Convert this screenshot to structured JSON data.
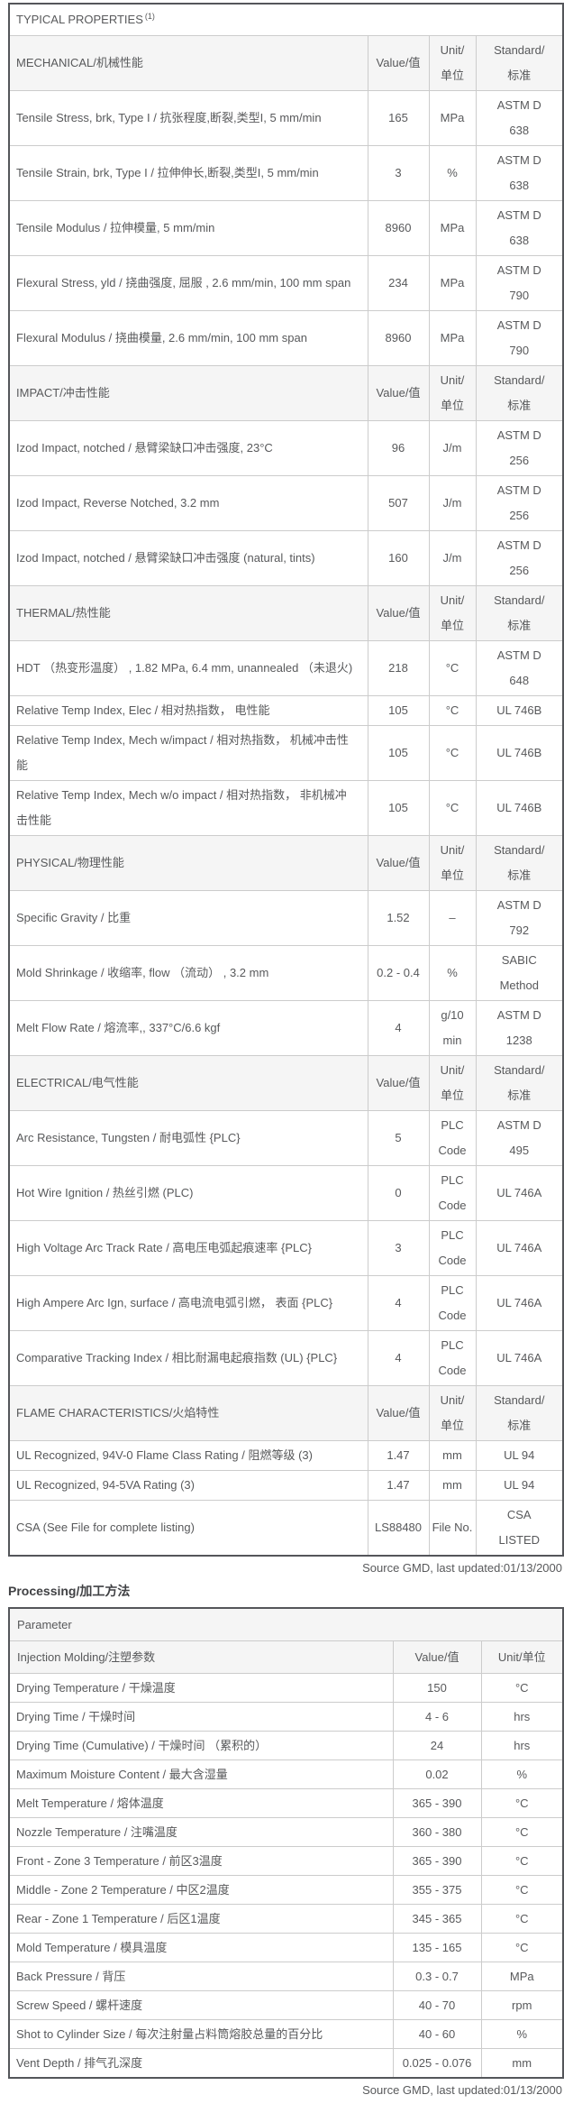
{
  "page": {
    "source_note": "Source GMD, last updated:01/13/2000",
    "processing_heading": "Processing/加工方法"
  },
  "typical_properties": {
    "title": "TYPICAL PROPERTIES",
    "title_superscript": "(1)",
    "columns": {
      "value": "Value/值",
      "unit": "Unit/\n单位",
      "standard": "Standard/\n标准"
    },
    "sections": [
      {
        "label": "MECHANICAL/机械性能",
        "rows": [
          {
            "property": "Tensile Stress, brk, Type I / 抗张程度,断裂,类型I, 5 mm/min",
            "value": "165",
            "unit": "MPa",
            "standard": "ASTM D\n638"
          },
          {
            "property": "Tensile Strain, brk, Type I / 拉伸伸长,断裂,类型I, 5 mm/min",
            "value": "3",
            "unit": "%",
            "standard": "ASTM D\n638"
          },
          {
            "property": "Tensile Modulus / 拉伸模量, 5 mm/min",
            "value": "8960",
            "unit": "MPa",
            "standard": "ASTM D\n638"
          },
          {
            "property": "Flexural Stress, yld / 挠曲强度, 屈服 , 2.6 mm/min, 100 mm span",
            "value": "234",
            "unit": "MPa",
            "standard": "ASTM D\n790"
          },
          {
            "property": "Flexural Modulus / 挠曲模量, 2.6 mm/min, 100 mm span",
            "value": "8960",
            "unit": "MPa",
            "standard": "ASTM D\n790"
          }
        ]
      },
      {
        "label": "IMPACT/冲击性能",
        "rows": [
          {
            "property": "Izod Impact, notched / 悬臂梁缺口冲击强度, 23°C",
            "value": "96",
            "unit": "J/m",
            "standard": "ASTM D\n256"
          },
          {
            "property": "Izod Impact, Reverse Notched, 3.2 mm",
            "value": "507",
            "unit": "J/m",
            "standard": "ASTM D\n256"
          },
          {
            "property": "Izod Impact, notched / 悬臂梁缺口冲击强度 (natural, tints)",
            "value": "160",
            "unit": "J/m",
            "standard": "ASTM D\n256"
          }
        ]
      },
      {
        "label": "THERMAL/热性能",
        "rows": [
          {
            "property": "HDT （热变形温度） , 1.82 MPa, 6.4 mm, unannealed （未退火)",
            "value": "218",
            "unit": "°C",
            "standard": "ASTM D\n648"
          },
          {
            "property": "Relative Temp Index, Elec / 相对热指数， 电性能",
            "value": "105",
            "unit": "°C",
            "standard": "UL 746B"
          },
          {
            "property": "Relative Temp Index, Mech w/impact / 相对热指数， 机械冲击性能",
            "value": "105",
            "unit": "°C",
            "standard": "UL 746B"
          },
          {
            "property": "Relative Temp Index, Mech w/o impact / 相对热指数， 非机械冲击性能",
            "value": "105",
            "unit": "°C",
            "standard": "UL 746B"
          }
        ]
      },
      {
        "label": "PHYSICAL/物理性能",
        "rows": [
          {
            "property": "Specific Gravity / 比重",
            "value": "1.52",
            "unit": "–",
            "standard": "ASTM D\n792"
          },
          {
            "property": "Mold Shrinkage / 收缩率, flow （流动） , 3.2 mm",
            "value": "0.2 - 0.4",
            "unit": "%",
            "standard": "SABIC\nMethod"
          },
          {
            "property": "Melt Flow Rate / 熔流率,, 337°C/6.6 kgf",
            "value": "4",
            "unit": "g/10\nmin",
            "standard": "ASTM D\n1238"
          }
        ]
      },
      {
        "label": "ELECTRICAL/电气性能",
        "rows": [
          {
            "property": "Arc Resistance, Tungsten / 耐电弧性 {PLC}",
            "value": "5",
            "unit": "PLC\nCode",
            "standard": "ASTM D\n495"
          },
          {
            "property": "Hot Wire Ignition / 热丝引燃 (PLC)",
            "value": "0",
            "unit": "PLC\nCode",
            "standard": "UL 746A"
          },
          {
            "property": "High Voltage Arc Track Rate / 高电压电弧起痕速率 {PLC}",
            "value": "3",
            "unit": "PLC\nCode",
            "standard": "UL 746A"
          },
          {
            "property": "High Ampere Arc Ign, surface / 高电流电弧引燃， 表面 {PLC}",
            "value": "4",
            "unit": "PLC\nCode",
            "standard": "UL 746A"
          },
          {
            "property": "Comparative Tracking Index / 相比耐漏电起痕指数 (UL) {PLC}",
            "value": "4",
            "unit": "PLC\nCode",
            "standard": "UL 746A"
          }
        ]
      },
      {
        "label": "FLAME CHARACTERISTICS/火焰特性",
        "rows": [
          {
            "property": "UL Recognized, 94V-0 Flame Class Rating / 阻燃等级 (3)",
            "value": "1.47",
            "unit": "mm",
            "standard": "UL 94"
          },
          {
            "property": "UL Recognized, 94-5VA Rating (3)",
            "value": "1.47",
            "unit": "mm",
            "standard": "UL 94"
          },
          {
            "property": "CSA (See File for complete listing)",
            "value": "LS88480",
            "unit": "File No.",
            "standard": "CSA\nLISTED"
          }
        ]
      }
    ]
  },
  "processing": {
    "header": "Parameter",
    "section": {
      "label": "Injection Molding/注塑参数",
      "value_col": "Value/值",
      "unit_col": "Unit/单位"
    },
    "rows": [
      {
        "parameter": "Drying Temperature / 干燥温度",
        "value": "150",
        "unit": "°C"
      },
      {
        "parameter": "Drying Time / 干燥时间",
        "value": "4 - 6",
        "unit": "hrs"
      },
      {
        "parameter": "Drying Time (Cumulative) / 干燥时间 （累积的）",
        "value": "24",
        "unit": "hrs"
      },
      {
        "parameter": "Maximum Moisture Content / 最大含湿量",
        "value": "0.02",
        "unit": "%"
      },
      {
        "parameter": "Melt Temperature / 熔体温度",
        "value": "365 - 390",
        "unit": "°C"
      },
      {
        "parameter": "Nozzle Temperature / 注嘴温度",
        "value": "360 - 380",
        "unit": "°C"
      },
      {
        "parameter": "Front - Zone 3 Temperature / 前区3温度",
        "value": "365 - 390",
        "unit": "°C"
      },
      {
        "parameter": "Middle - Zone 2 Temperature / 中区2温度",
        "value": "355 - 375",
        "unit": "°C"
      },
      {
        "parameter": "Rear - Zone 1 Temperature / 后区1温度",
        "value": "345 - 365",
        "unit": "°C"
      },
      {
        "parameter": "Mold Temperature / 模具温度",
        "value": "135 - 165",
        "unit": "°C"
      },
      {
        "parameter": "Back Pressure / 背压",
        "value": "0.3 - 0.7",
        "unit": "MPa"
      },
      {
        "parameter": "Screw Speed / 螺杆速度",
        "value": "40 - 70",
        "unit": "rpm"
      },
      {
        "parameter": "Shot to Cylinder Size / 每次注射量占料筒熔胶总量的百分比",
        "value": "40 - 60",
        "unit": "%"
      },
      {
        "parameter": "Vent Depth / 排气孔深度",
        "value": "0.025 - 0.076",
        "unit": "mm"
      }
    ]
  }
}
